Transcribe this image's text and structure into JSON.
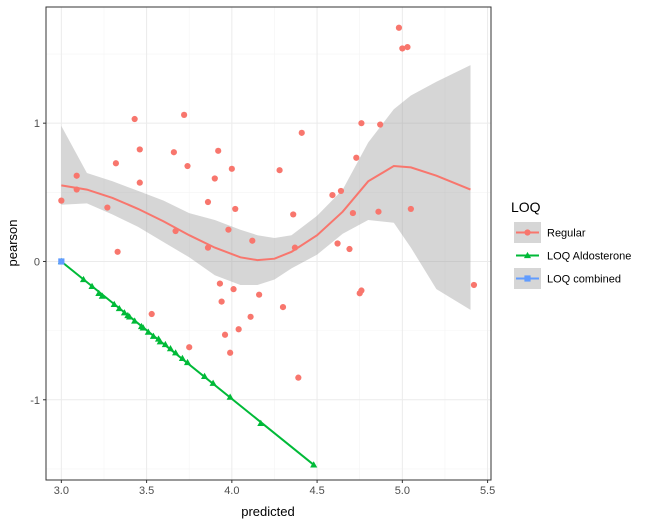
{
  "chart_data": {
    "type": "scatter",
    "xlabel": "predicted",
    "ylabel": "pearson",
    "xlim": [
      2.91,
      5.52
    ],
    "ylim": [
      -1.58,
      1.84
    ],
    "x_ticks": [
      3.0,
      3.5,
      4.0,
      4.5,
      5.0,
      5.5
    ],
    "x_tick_labels": [
      "3.0",
      "3.5",
      "4.0",
      "4.5",
      "5.0",
      "5.5"
    ],
    "y_ticks": [
      -1,
      0,
      1
    ],
    "y_tick_labels": [
      "-1",
      "0",
      "1"
    ],
    "grid": true,
    "legend": {
      "title": "LOQ",
      "position": "right",
      "entries": [
        "Regular",
        "LOQ Aldosterone",
        "LOQ combined"
      ]
    },
    "colors": {
      "regular": "#F8766D",
      "aldosterone": "#00BA38",
      "combined": "#619CFF",
      "ribbon": "#999999",
      "panel_grid_major": "#EBEBEB",
      "panel_grid_minor": "#F4F4F4",
      "panel_border": "#333333"
    },
    "series": [
      {
        "name": "Regular",
        "marker": "circle",
        "points": [
          [
            3.0,
            0.44
          ],
          [
            3.09,
            0.52
          ],
          [
            3.09,
            0.62
          ],
          [
            3.27,
            0.39
          ],
          [
            3.32,
            0.71
          ],
          [
            3.33,
            0.07
          ],
          [
            3.43,
            1.03
          ],
          [
            3.46,
            0.57
          ],
          [
            3.46,
            0.81
          ],
          [
            3.53,
            -0.38
          ],
          [
            3.66,
            0.79
          ],
          [
            3.67,
            0.22
          ],
          [
            3.72,
            1.06
          ],
          [
            3.74,
            0.69
          ],
          [
            3.75,
            -0.62
          ],
          [
            3.86,
            0.43
          ],
          [
            3.86,
            0.1
          ],
          [
            3.9,
            0.6
          ],
          [
            3.92,
            0.8
          ],
          [
            3.93,
            -0.16
          ],
          [
            3.94,
            -0.29
          ],
          [
            3.96,
            -0.53
          ],
          [
            3.98,
            0.23
          ],
          [
            3.99,
            -0.66
          ],
          [
            4.0,
            0.67
          ],
          [
            4.01,
            -0.2
          ],
          [
            4.02,
            0.38
          ],
          [
            4.04,
            -0.49
          ],
          [
            4.11,
            -0.4
          ],
          [
            4.12,
            0.15
          ],
          [
            4.16,
            -0.24
          ],
          [
            4.28,
            0.66
          ],
          [
            4.3,
            -0.33
          ],
          [
            4.36,
            0.34
          ],
          [
            4.37,
            0.1
          ],
          [
            4.39,
            -0.84
          ],
          [
            4.41,
            0.93
          ],
          [
            4.59,
            0.48
          ],
          [
            4.62,
            0.13
          ],
          [
            4.64,
            0.51
          ],
          [
            4.69,
            0.09
          ],
          [
            4.71,
            0.35
          ],
          [
            4.73,
            0.75
          ],
          [
            4.75,
            -0.23
          ],
          [
            4.76,
            -0.21
          ],
          [
            4.76,
            1.0
          ],
          [
            4.86,
            0.36
          ],
          [
            4.87,
            0.99
          ],
          [
            4.98,
            1.69
          ],
          [
            5.0,
            1.54
          ],
          [
            5.03,
            1.55
          ],
          [
            5.05,
            0.38
          ],
          [
            5.42,
            -0.17
          ]
        ]
      },
      {
        "name": "LOQ Aldosterone",
        "marker": "triangle",
        "points": [
          [
            3.0,
            0.0
          ],
          [
            3.13,
            -0.13
          ],
          [
            3.18,
            -0.18
          ],
          [
            3.22,
            -0.23
          ],
          [
            3.24,
            -0.25
          ],
          [
            3.31,
            -0.31
          ],
          [
            3.34,
            -0.34
          ],
          [
            3.37,
            -0.37
          ],
          [
            3.39,
            -0.39
          ],
          [
            3.4,
            -0.4
          ],
          [
            3.43,
            -0.43
          ],
          [
            3.47,
            -0.47
          ],
          [
            3.48,
            -0.48
          ],
          [
            3.51,
            -0.51
          ],
          [
            3.54,
            -0.54
          ],
          [
            3.57,
            -0.56
          ],
          [
            3.58,
            -0.58
          ],
          [
            3.61,
            -0.6
          ],
          [
            3.64,
            -0.63
          ],
          [
            3.67,
            -0.66
          ],
          [
            3.71,
            -0.7
          ],
          [
            3.74,
            -0.73
          ],
          [
            3.84,
            -0.83
          ],
          [
            3.89,
            -0.88
          ],
          [
            3.99,
            -0.98
          ],
          [
            4.17,
            -1.17
          ],
          [
            4.48,
            -1.47
          ]
        ]
      },
      {
        "name": "LOQ combined",
        "marker": "square",
        "points": [
          [
            3.0,
            0.0
          ]
        ]
      }
    ],
    "smooth_regular": {
      "x": [
        3.0,
        3.15,
        3.3,
        3.45,
        3.6,
        3.75,
        3.9,
        4.05,
        4.15,
        4.25,
        4.35,
        4.5,
        4.65,
        4.8,
        4.95,
        5.05,
        5.2,
        5.4
      ],
      "y": [
        0.55,
        0.52,
        0.46,
        0.38,
        0.29,
        0.19,
        0.1,
        0.03,
        0.01,
        0.02,
        0.07,
        0.19,
        0.36,
        0.58,
        0.69,
        0.68,
        0.62,
        0.52
      ],
      "ymin": [
        0.41,
        0.42,
        0.34,
        0.25,
        0.14,
        0.03,
        -0.1,
        -0.17,
        -0.17,
        -0.13,
        -0.05,
        0.05,
        0.2,
        0.3,
        0.28,
        0.1,
        -0.2,
        -0.35
      ],
      "ymax": [
        0.98,
        0.64,
        0.58,
        0.51,
        0.44,
        0.35,
        0.3,
        0.23,
        0.19,
        0.17,
        0.19,
        0.33,
        0.52,
        0.86,
        1.1,
        1.2,
        1.3,
        1.42
      ]
    },
    "smooth_aldosterone": {
      "x": [
        3.0,
        4.48
      ],
      "y": [
        0.0,
        -1.47
      ]
    }
  }
}
